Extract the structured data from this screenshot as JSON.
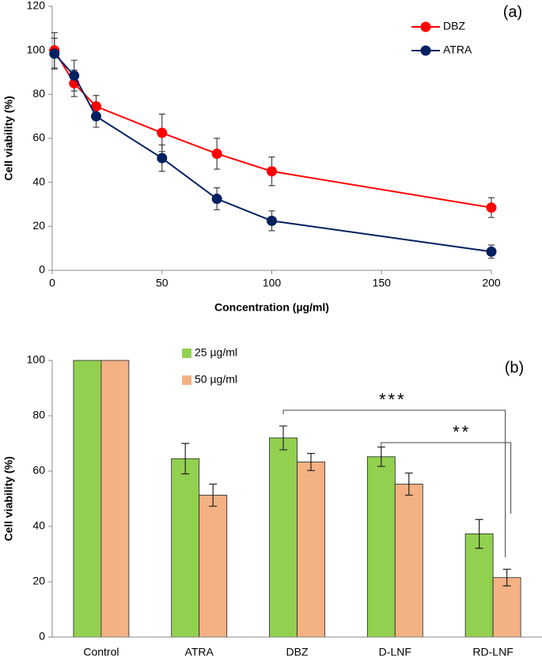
{
  "chart_data": [
    {
      "type": "line",
      "panel_label": "(a)",
      "x_label": "Concentration (µg/ml)",
      "y_label": "Cell viability (%)",
      "x": [
        1,
        10,
        20,
        50,
        75,
        100,
        200
      ],
      "series": [
        {
          "name": "DBZ",
          "color": "#ff0000",
          "values": [
            100,
            85,
            74.5,
            62.5,
            53,
            45,
            28.5
          ],
          "errors": [
            8,
            6,
            5,
            8.5,
            7,
            6.5,
            4.5
          ]
        },
        {
          "name": "ATRA",
          "color": "#002060",
          "values": [
            98.5,
            88.5,
            70,
            51,
            32.5,
            22.5,
            8.5
          ],
          "errors": [
            7,
            7,
            5,
            6,
            5,
            4.5,
            3
          ]
        }
      ],
      "xlim": [
        0,
        200
      ],
      "xticks": [
        0,
        50,
        100,
        150,
        200
      ],
      "ylim": [
        0,
        120
      ],
      "yticks": [
        0,
        20,
        40,
        60,
        80,
        100,
        120
      ],
      "legend": "upper right"
    },
    {
      "type": "bar",
      "panel_label": "(b)",
      "y_label": "Cell viability (%)",
      "categories": [
        "Control",
        "ATRA",
        "DBZ",
        "D-LNF",
        "RD-LNF"
      ],
      "series": [
        {
          "name": "25 µg/ml",
          "color": "#92d050",
          "values": [
            100,
            64.5,
            72,
            65.2,
            37.3
          ],
          "errors": [
            0,
            5.5,
            4.3,
            3.5,
            5.2
          ]
        },
        {
          "name": "50 µg/ml",
          "color": "#f4b183",
          "values": [
            100,
            51.3,
            63.3,
            55.3,
            21.5
          ],
          "errors": [
            0,
            4,
            3.1,
            4,
            3
          ]
        }
      ],
      "ylim": [
        0,
        100
      ],
      "yticks": [
        0,
        20,
        40,
        60,
        80,
        100
      ],
      "legend": "upper center",
      "annotations": [
        "***",
        "**"
      ]
    }
  ]
}
